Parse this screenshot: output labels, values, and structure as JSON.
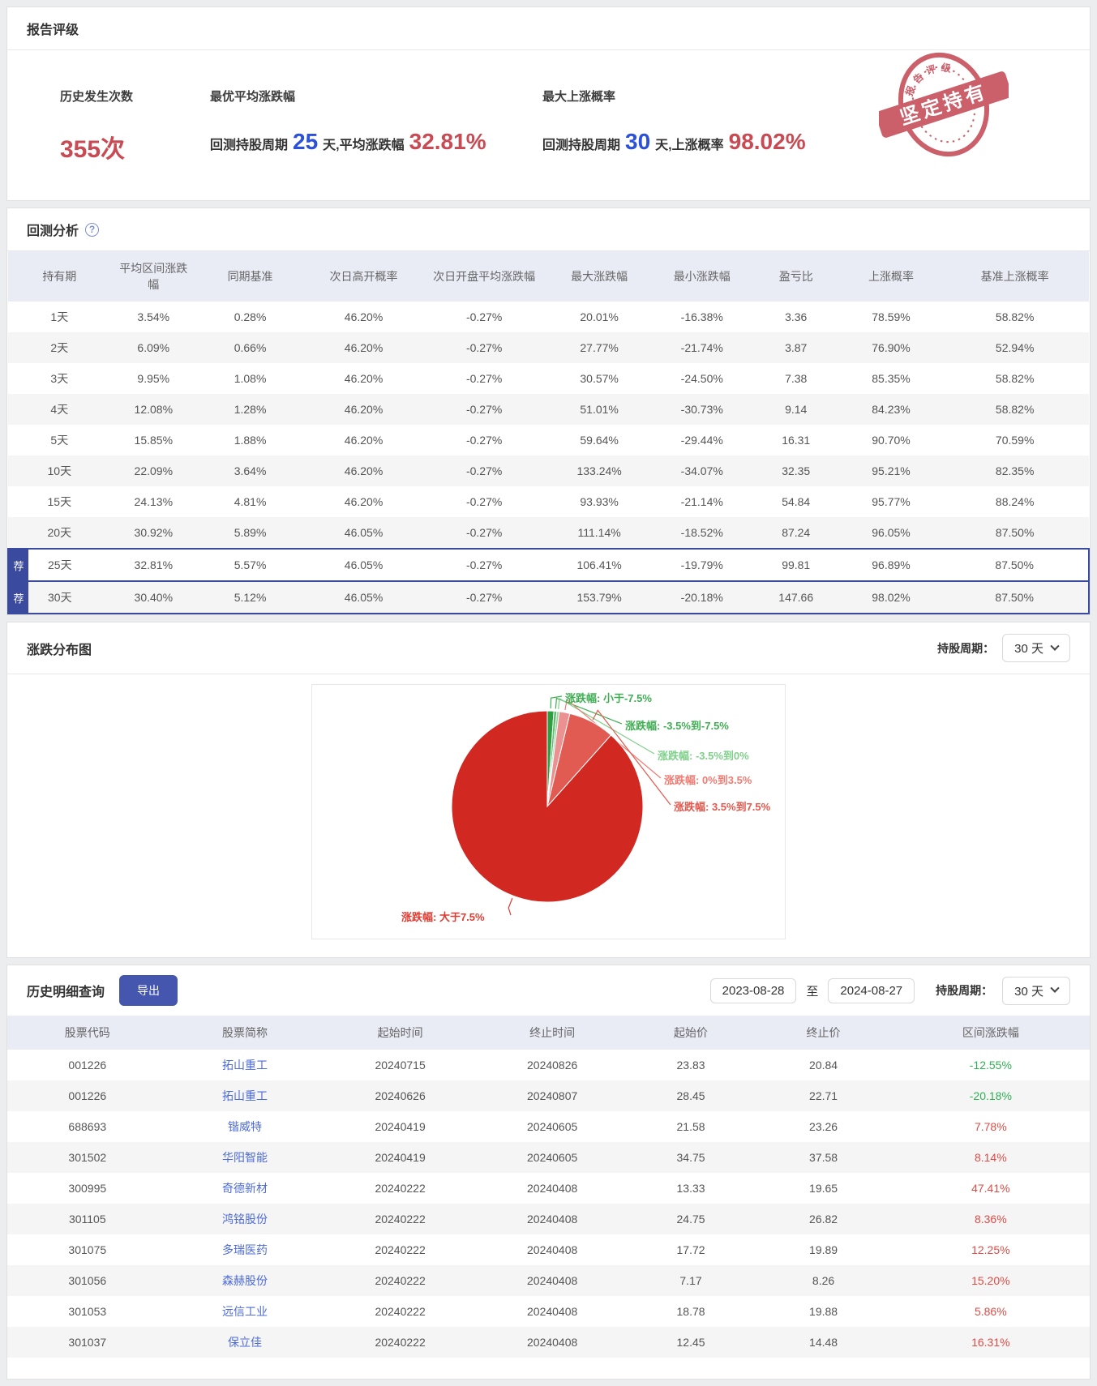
{
  "report_rating": {
    "title": "报告评级",
    "stats": [
      {
        "label": "历史发生次数",
        "value": "355次"
      },
      {
        "label": "最优平均涨跌幅",
        "prefix": "回测持股周期",
        "days": "25",
        "mid": "天,平均涨跌幅",
        "value": "32.81%"
      },
      {
        "label": "最大上涨概率",
        "prefix": "回测持股周期",
        "days": "30",
        "mid": "天,上涨概率",
        "value": "98.02%"
      }
    ],
    "stamp": {
      "banner": "坚定持有",
      "arc_text": "报告评级"
    }
  },
  "backtest": {
    "title": "回测分析",
    "recommend_badge": "荐",
    "columns": [
      "持有期",
      "平均区间涨跌幅",
      "同期基准",
      "次日高开概率",
      "次日开盘平均涨跌幅",
      "最大涨跌幅",
      "最小涨跌幅",
      "盈亏比",
      "上涨概率",
      "基准上涨概率"
    ],
    "rows": [
      {
        "period": "1天",
        "cells": [
          "3.54%",
          "0.28%",
          "46.20%",
          "-0.27%",
          "20.01%",
          "-16.38%",
          "3.36",
          "78.59%",
          "58.82%"
        ],
        "recommended": false
      },
      {
        "period": "2天",
        "cells": [
          "6.09%",
          "0.66%",
          "46.20%",
          "-0.27%",
          "27.77%",
          "-21.74%",
          "3.87",
          "76.90%",
          "52.94%"
        ],
        "recommended": false
      },
      {
        "period": "3天",
        "cells": [
          "9.95%",
          "1.08%",
          "46.20%",
          "-0.27%",
          "30.57%",
          "-24.50%",
          "7.38",
          "85.35%",
          "58.82%"
        ],
        "recommended": false
      },
      {
        "period": "4天",
        "cells": [
          "12.08%",
          "1.28%",
          "46.20%",
          "-0.27%",
          "51.01%",
          "-30.73%",
          "9.14",
          "84.23%",
          "58.82%"
        ],
        "recommended": false
      },
      {
        "period": "5天",
        "cells": [
          "15.85%",
          "1.88%",
          "46.20%",
          "-0.27%",
          "59.64%",
          "-29.44%",
          "16.31",
          "90.70%",
          "70.59%"
        ],
        "recommended": false
      },
      {
        "period": "10天",
        "cells": [
          "22.09%",
          "3.64%",
          "46.20%",
          "-0.27%",
          "133.24%",
          "-34.07%",
          "32.35",
          "95.21%",
          "82.35%"
        ],
        "recommended": false
      },
      {
        "period": "15天",
        "cells": [
          "24.13%",
          "4.81%",
          "46.20%",
          "-0.27%",
          "93.93%",
          "-21.14%",
          "54.84",
          "95.77%",
          "88.24%"
        ],
        "recommended": false
      },
      {
        "period": "20天",
        "cells": [
          "30.92%",
          "5.89%",
          "46.05%",
          "-0.27%",
          "111.14%",
          "-18.52%",
          "87.24",
          "96.05%",
          "87.50%"
        ],
        "recommended": false
      },
      {
        "period": "25天",
        "cells": [
          "32.81%",
          "5.57%",
          "46.05%",
          "-0.27%",
          "106.41%",
          "-19.79%",
          "99.81",
          "96.89%",
          "87.50%"
        ],
        "recommended": true
      },
      {
        "period": "30天",
        "cells": [
          "30.40%",
          "5.12%",
          "46.05%",
          "-0.27%",
          "153.79%",
          "-20.18%",
          "147.66",
          "98.02%",
          "87.50%"
        ],
        "recommended": true
      }
    ]
  },
  "distribution": {
    "title": "涨跌分布图",
    "period_label": "持股周期：",
    "period_value": "30 天"
  },
  "chart_data": {
    "type": "pie",
    "title": "涨跌分布图",
    "legend_position": "callout-labels",
    "slices": [
      {
        "label": "涨跌幅: 小于-7.5%",
        "value": 1.1,
        "color": "#2f9e43",
        "label_color": "#3fae53"
      },
      {
        "label": "涨跌幅: -3.5%到-7.5%",
        "value": 0.5,
        "color": "#5bbd69",
        "label_color": "#3fae53"
      },
      {
        "label": "涨跌幅: -3.5%到0%",
        "value": 0.4,
        "color": "#8ed398",
        "label_color": "#7ed08a"
      },
      {
        "label": "涨跌幅: 0%到3.5%",
        "value": 1.8,
        "color": "#ec9191",
        "label_color": "#ef7b72"
      },
      {
        "label": "涨跌幅: 3.5%到7.5%",
        "value": 7.8,
        "color": "#e25b52",
        "label_color": "#e4574c"
      },
      {
        "label": "涨跌幅: 大于7.5%",
        "value": 88.4,
        "color": "#d22822",
        "label_color": "#e03b30"
      }
    ]
  },
  "history": {
    "title": "历史明细查询",
    "export_label": "导出",
    "date_from": "2023-08-28",
    "date_separator": "至",
    "date_to": "2024-08-27",
    "period_label": "持股周期：",
    "period_value": "30 天",
    "columns": [
      "股票代码",
      "股票简称",
      "起始时间",
      "终止时间",
      "起始价",
      "终止价",
      "区间涨跌幅"
    ],
    "rows": [
      {
        "code": "001226",
        "name": "拓山重工",
        "start": "20240715",
        "end": "20240826",
        "start_price": "23.83",
        "end_price": "20.84",
        "change": "-12.55%",
        "direction": "down"
      },
      {
        "code": "001226",
        "name": "拓山重工",
        "start": "20240626",
        "end": "20240807",
        "start_price": "28.45",
        "end_price": "22.71",
        "change": "-20.18%",
        "direction": "down"
      },
      {
        "code": "688693",
        "name": "锴威特",
        "start": "20240419",
        "end": "20240605",
        "start_price": "21.58",
        "end_price": "23.26",
        "change": "7.78%",
        "direction": "up"
      },
      {
        "code": "301502",
        "name": "华阳智能",
        "start": "20240419",
        "end": "20240605",
        "start_price": "34.75",
        "end_price": "37.58",
        "change": "8.14%",
        "direction": "up"
      },
      {
        "code": "300995",
        "name": "奇德新材",
        "start": "20240222",
        "end": "20240408",
        "start_price": "13.33",
        "end_price": "19.65",
        "change": "47.41%",
        "direction": "up"
      },
      {
        "code": "301105",
        "name": "鸿铭股份",
        "start": "20240222",
        "end": "20240408",
        "start_price": "24.75",
        "end_price": "26.82",
        "change": "8.36%",
        "direction": "up"
      },
      {
        "code": "301075",
        "name": "多瑞医药",
        "start": "20240222",
        "end": "20240408",
        "start_price": "17.72",
        "end_price": "19.89",
        "change": "12.25%",
        "direction": "up"
      },
      {
        "code": "301056",
        "name": "森赫股份",
        "start": "20240222",
        "end": "20240408",
        "start_price": "7.17",
        "end_price": "8.26",
        "change": "15.20%",
        "direction": "up"
      },
      {
        "code": "301053",
        "name": "远信工业",
        "start": "20240222",
        "end": "20240408",
        "start_price": "18.78",
        "end_price": "19.88",
        "change": "5.86%",
        "direction": "up"
      },
      {
        "code": "301037",
        "name": "保立佳",
        "start": "20240222",
        "end": "20240408",
        "start_price": "12.45",
        "end_price": "14.48",
        "change": "16.31%",
        "direction": "up"
      }
    ]
  }
}
